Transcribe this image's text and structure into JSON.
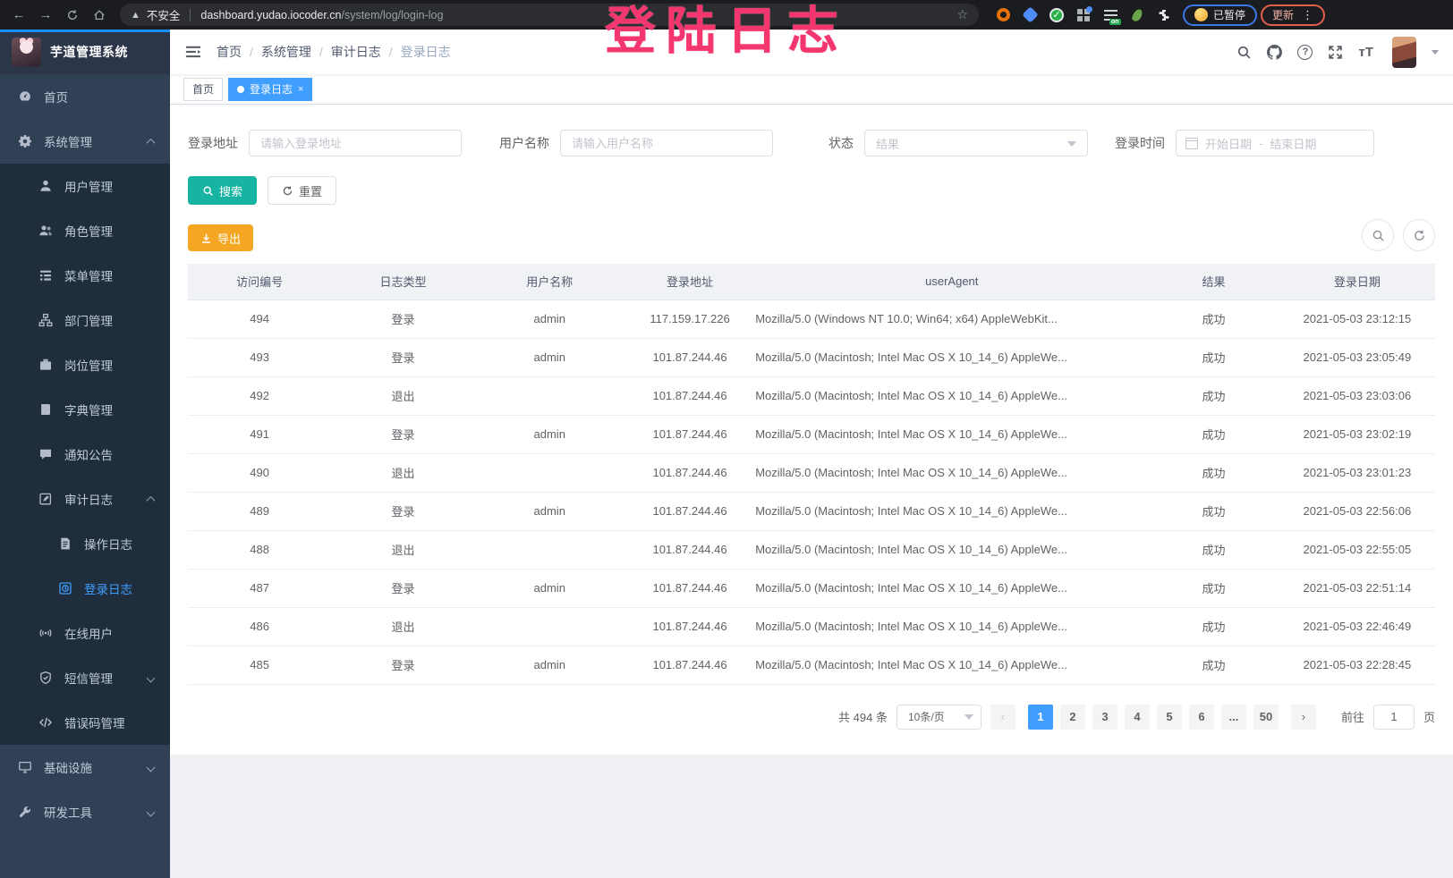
{
  "colors": {
    "accent": "#409eff",
    "sidebar_bg": "#304156",
    "submenu_bg": "#1f2d3d",
    "search_button": "#17b3a3",
    "export_button": "#f5a623",
    "annotation": "#f4366e"
  },
  "browser": {
    "security_label": "不安全",
    "url_domain": "dashboard.yudao.iocoder.cn",
    "url_path": "/system/log/login-log",
    "extensions": [
      "orange-ring-extension-icon",
      "blue-gem-extension-icon",
      "green-check-extension-icon",
      "grid-extension-icon",
      "list-on-extension-icon",
      "green-sprout-extension-icon",
      "puzzle-extension-icon"
    ],
    "green_check_glyph": "✓",
    "paused_chip": "已暂停",
    "update_chip": "更新"
  },
  "annotation": {
    "text": "登陆日志"
  },
  "sidebar": {
    "title": "芋道管理系统",
    "items": [
      {
        "label": "首页",
        "icon": "dashboard-icon",
        "level": 1
      },
      {
        "label": "系统管理",
        "icon": "gear-icon",
        "level": 1,
        "arrow": "up"
      },
      {
        "label": "用户管理",
        "icon": "user-icon",
        "level": 2,
        "sub": true
      },
      {
        "label": "角色管理",
        "icon": "roles-icon",
        "level": 2,
        "sub": true
      },
      {
        "label": "菜单管理",
        "icon": "menu-list-icon",
        "level": 2,
        "sub": true
      },
      {
        "label": "部门管理",
        "icon": "org-tree-icon",
        "level": 2,
        "sub": true
      },
      {
        "label": "岗位管理",
        "icon": "post-icon",
        "level": 2,
        "sub": true
      },
      {
        "label": "字典管理",
        "icon": "dict-icon",
        "level": 2,
        "sub": true
      },
      {
        "label": "通知公告",
        "icon": "notice-icon",
        "level": 2,
        "sub": true
      },
      {
        "label": "审计日志",
        "icon": "audit-edit-icon",
        "level": 2,
        "sub": true,
        "arrow": "up"
      },
      {
        "label": "操作日志",
        "icon": "operate-log-icon",
        "level": 3,
        "sub": true
      },
      {
        "label": "登录日志",
        "icon": "login-log-icon",
        "level": 3,
        "sub": true,
        "active": true
      },
      {
        "label": "在线用户",
        "icon": "online-user-icon",
        "level": 2,
        "sub": true
      },
      {
        "label": "短信管理",
        "icon": "sms-shield-icon",
        "level": 2,
        "sub": true,
        "arrow": "down"
      },
      {
        "label": "错误码管理",
        "icon": "error-code-icon",
        "level": 2,
        "sub": true
      },
      {
        "label": "基础设施",
        "icon": "infra-monitor-icon",
        "level": 1,
        "arrow": "down"
      },
      {
        "label": "研发工具",
        "icon": "dev-tool-icon",
        "level": 1,
        "arrow": "down"
      }
    ]
  },
  "navbar": {
    "breadcrumb": [
      "首页",
      "系统管理",
      "审计日志",
      "登录日志"
    ],
    "separator": "/"
  },
  "tags": {
    "items": [
      {
        "label": "首页",
        "active": false
      },
      {
        "label": "登录日志",
        "active": true
      }
    ],
    "close_glyph": "×"
  },
  "filters": {
    "login_address": {
      "label": "登录地址",
      "placeholder": "请输入登录地址"
    },
    "username": {
      "label": "用户名称",
      "placeholder": "请输入用户名称"
    },
    "status": {
      "label": "状态",
      "placeholder": "结果"
    },
    "login_time": {
      "label": "登录时间",
      "start_placeholder": "开始日期",
      "separator": "-",
      "end_placeholder": "结束日期"
    },
    "search_label": "搜索",
    "reset_label": "重置"
  },
  "toolbar": {
    "export_label": "导出"
  },
  "table": {
    "headers": [
      "访问编号",
      "日志类型",
      "用户名称",
      "登录地址",
      "userAgent",
      "结果",
      "登录日期"
    ],
    "rows": [
      {
        "id": "494",
        "type": "登录",
        "user": "admin",
        "ip": "117.159.17.226",
        "agent": "Mozilla/5.0 (Windows NT 10.0; Win64; x64) AppleWebKit...",
        "result": "成功",
        "date": "2021-05-03 23:12:15"
      },
      {
        "id": "493",
        "type": "登录",
        "user": "admin",
        "ip": "101.87.244.46",
        "agent": "Mozilla/5.0 (Macintosh; Intel Mac OS X 10_14_6) AppleWe...",
        "result": "成功",
        "date": "2021-05-03 23:05:49"
      },
      {
        "id": "492",
        "type": "退出",
        "user": "",
        "ip": "101.87.244.46",
        "agent": "Mozilla/5.0 (Macintosh; Intel Mac OS X 10_14_6) AppleWe...",
        "result": "成功",
        "date": "2021-05-03 23:03:06"
      },
      {
        "id": "491",
        "type": "登录",
        "user": "admin",
        "ip": "101.87.244.46",
        "agent": "Mozilla/5.0 (Macintosh; Intel Mac OS X 10_14_6) AppleWe...",
        "result": "成功",
        "date": "2021-05-03 23:02:19"
      },
      {
        "id": "490",
        "type": "退出",
        "user": "",
        "ip": "101.87.244.46",
        "agent": "Mozilla/5.0 (Macintosh; Intel Mac OS X 10_14_6) AppleWe...",
        "result": "成功",
        "date": "2021-05-03 23:01:23"
      },
      {
        "id": "489",
        "type": "登录",
        "user": "admin",
        "ip": "101.87.244.46",
        "agent": "Mozilla/5.0 (Macintosh; Intel Mac OS X 10_14_6) AppleWe...",
        "result": "成功",
        "date": "2021-05-03 22:56:06"
      },
      {
        "id": "488",
        "type": "退出",
        "user": "",
        "ip": "101.87.244.46",
        "agent": "Mozilla/5.0 (Macintosh; Intel Mac OS X 10_14_6) AppleWe...",
        "result": "成功",
        "date": "2021-05-03 22:55:05"
      },
      {
        "id": "487",
        "type": "登录",
        "user": "admin",
        "ip": "101.87.244.46",
        "agent": "Mozilla/5.0 (Macintosh; Intel Mac OS X 10_14_6) AppleWe...",
        "result": "成功",
        "date": "2021-05-03 22:51:14"
      },
      {
        "id": "486",
        "type": "退出",
        "user": "",
        "ip": "101.87.244.46",
        "agent": "Mozilla/5.0 (Macintosh; Intel Mac OS X 10_14_6) AppleWe...",
        "result": "成功",
        "date": "2021-05-03 22:46:49"
      },
      {
        "id": "485",
        "type": "登录",
        "user": "admin",
        "ip": "101.87.244.46",
        "agent": "Mozilla/5.0 (Macintosh; Intel Mac OS X 10_14_6) AppleWe...",
        "result": "成功",
        "date": "2021-05-03 22:28:45"
      }
    ]
  },
  "pagination": {
    "total_text": "共 494 条",
    "page_size": "10条/页",
    "pages": [
      "1",
      "2",
      "3",
      "4",
      "5",
      "6",
      "...",
      "50"
    ],
    "active_page": "1",
    "prev_glyph": "‹",
    "next_glyph": "›",
    "goto_label": "前往",
    "goto_value": "1",
    "page_suffix": "页"
  }
}
